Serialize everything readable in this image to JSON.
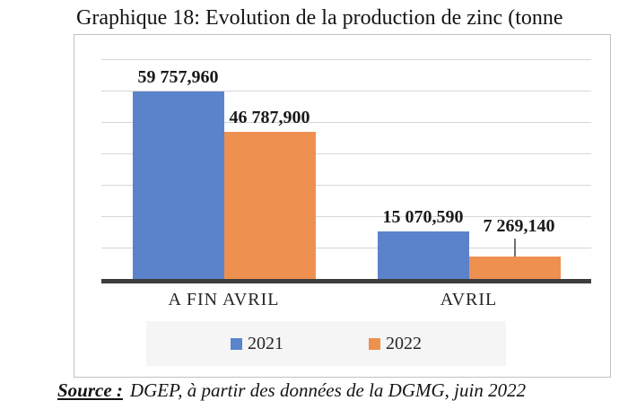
{
  "title": "Graphique 18: Evolution de la production de zinc (tonne",
  "source": {
    "label": "Source :",
    "text": "DGEP, à partir des données de la DGMG, juin 2022"
  },
  "chart_data": {
    "type": "bar",
    "categories": [
      "A FIN AVRIL",
      "AVRIL"
    ],
    "series": [
      {
        "name": "2021",
        "color": "#5b83cc",
        "values": [
          59757.96,
          15070.59
        ],
        "labels": [
          "59 757,960",
          "15 070,590"
        ]
      },
      {
        "name": "2022",
        "color": "#ee9050",
        "values": [
          46787.9,
          7269.14
        ],
        "labels": [
          "46 787,900",
          "7 269,140"
        ]
      }
    ],
    "ylim": [
      0,
      70000
    ],
    "gridline_step": 10000,
    "grid": true,
    "legend_position": "bottom",
    "axis_color": "#3d3d3d",
    "callouts": [
      {
        "series_index": 1,
        "category_index": 1
      }
    ]
  }
}
